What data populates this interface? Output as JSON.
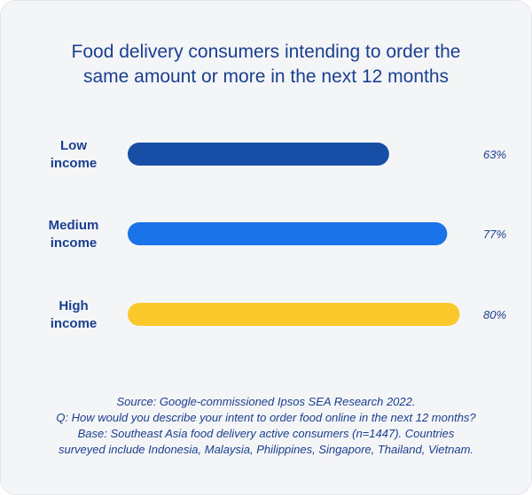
{
  "chart_data": {
    "type": "bar",
    "orientation": "horizontal",
    "title_lines": [
      "Food delivery consumers intending to order the",
      "same amount or more in the next 12 months"
    ],
    "categories": [
      {
        "lines": [
          "Low",
          "income"
        ]
      },
      {
        "lines": [
          "Medium",
          "income"
        ]
      },
      {
        "lines": [
          "High",
          "income"
        ]
      }
    ],
    "values": [
      63,
      77,
      80
    ],
    "value_labels": [
      "63%",
      "77%",
      "80%"
    ],
    "bar_colors": [
      "#174ea6",
      "#1a73e8",
      "#fbc82c"
    ],
    "xlim": [
      0,
      100
    ],
    "grid": false
  },
  "footer_lines": [
    "Source: Google-commissioned Ipsos SEA Research 2022.",
    "Q: How would you describe your intent to order food online in the next 12 months?",
    "Base: Southeast Asia food delivery active consumers  (n=1447). Countries",
    "surveyed include Indonesia, Malaysia, Philippines, Singapore, Thailand, Vietnam."
  ],
  "colors": {
    "text": "#1a3f8f",
    "background": "#f4f5f7"
  }
}
